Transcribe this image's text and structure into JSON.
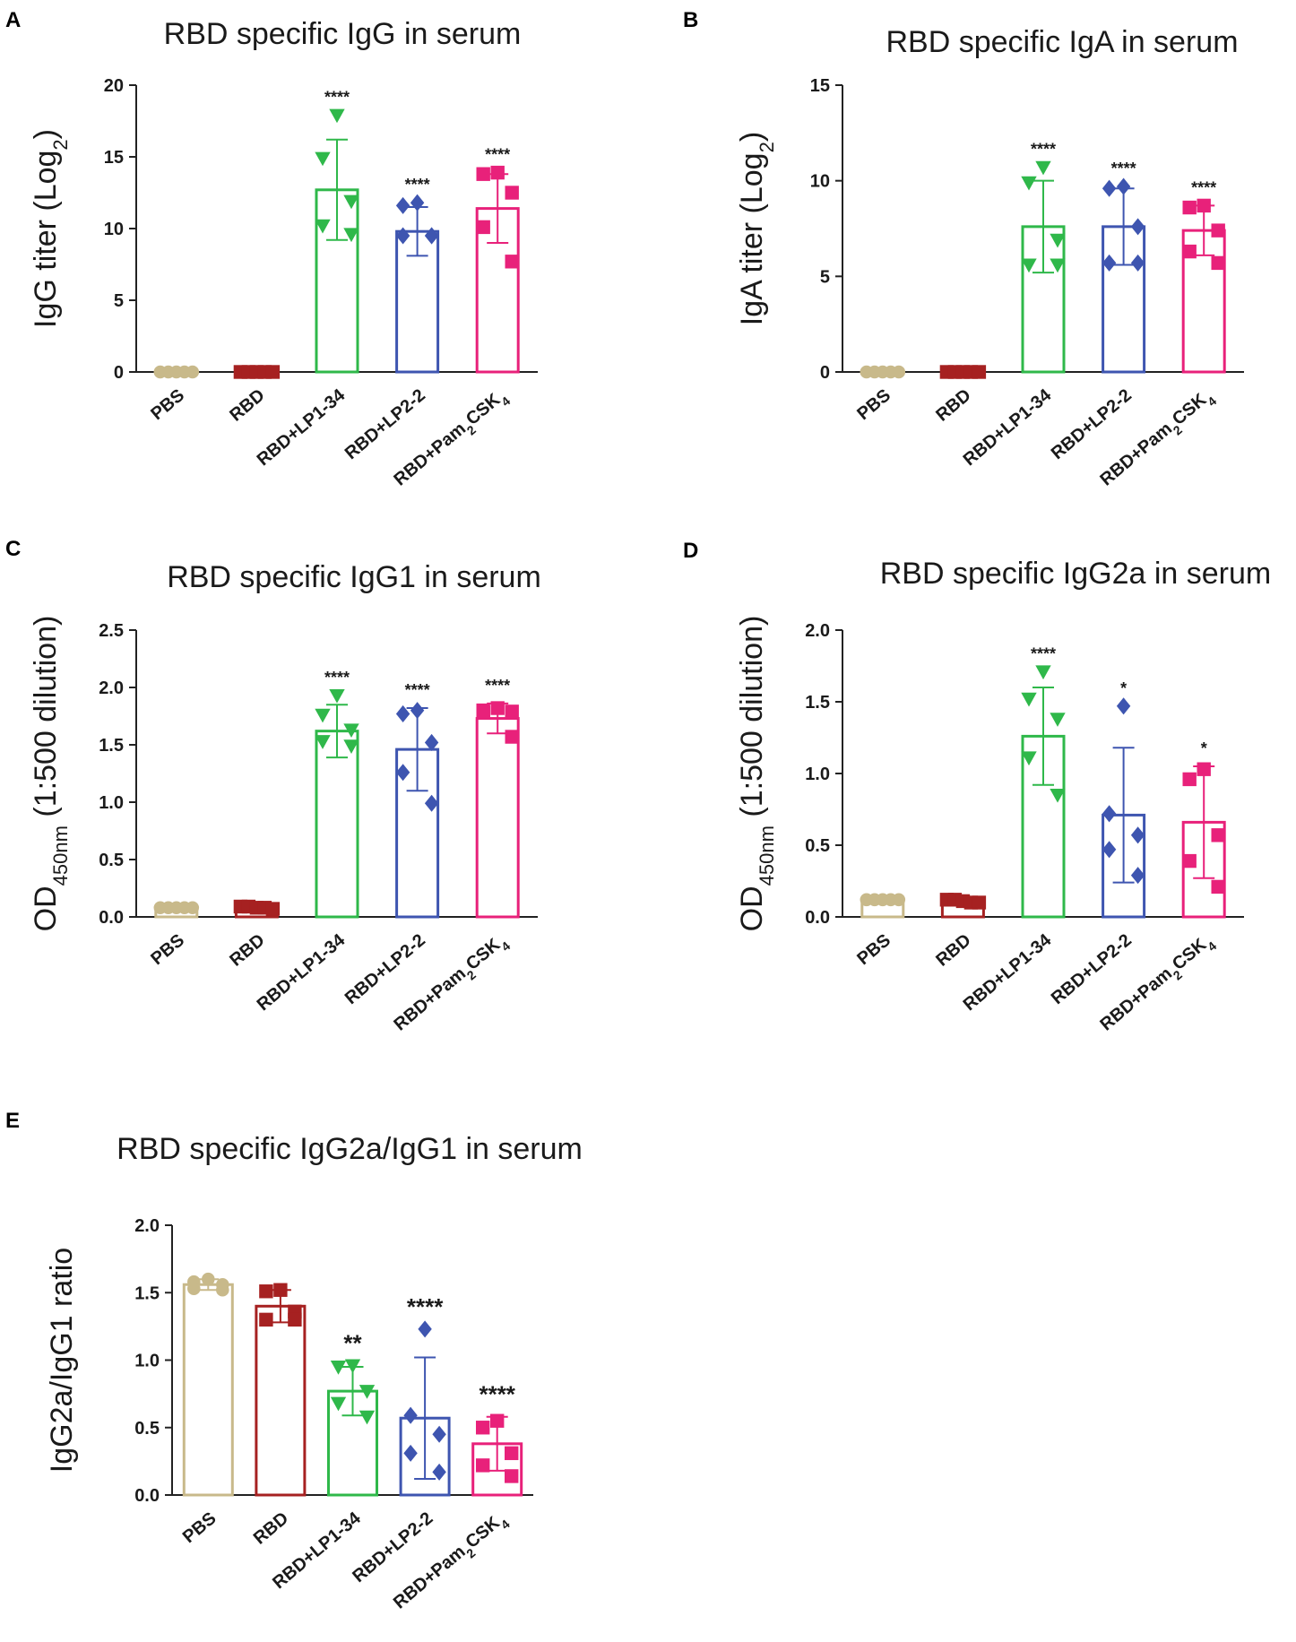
{
  "figure_colors": {
    "PBS": "#c8b98a",
    "RBD": "#a62121",
    "RBD+LP1-34": "#2fb84a",
    "RBD+LP2-2": "#3e55b0",
    "RBD+Pam2CSK4": "#e8217a"
  },
  "chart_data": [
    {
      "panel": "A",
      "type": "bar",
      "title": "RBD specific IgG in serum",
      "ylabel": {
        "main": "IgG titer (Log",
        "sub": "2",
        "tail": ")"
      },
      "ylim": [
        0,
        20
      ],
      "yticks": [
        0,
        5,
        10,
        15,
        20
      ],
      "categories": [
        {
          "main": "PBS"
        },
        {
          "main": "RBD"
        },
        {
          "main": "RBD+LP1-34"
        },
        {
          "main": "RBD+LP2-2"
        },
        {
          "main": "RBD+Pam",
          "sub": "2",
          "tail": "CSK",
          "sub2": "4"
        }
      ],
      "markers": [
        "circle",
        "square",
        "triangle",
        "diamond",
        "square"
      ],
      "means": [
        0,
        0,
        12.7,
        9.8,
        11.4
      ],
      "sd": [
        0,
        0,
        3.5,
        1.7,
        2.4
      ],
      "points": [
        [
          0,
          0,
          0,
          0,
          0
        ],
        [
          0,
          0,
          0,
          0,
          0
        ],
        [
          17.9,
          14.9,
          11.9,
          10.2,
          9.6
        ],
        [
          11.8,
          11.6,
          9.5,
          9.5,
          9.5
        ],
        [
          13.9,
          13.8,
          12.5,
          10.1,
          7.7
        ]
      ],
      "significance": [
        "",
        "",
        "****",
        "****",
        "****"
      ]
    },
    {
      "panel": "B",
      "type": "bar",
      "title": "RBD specific IgA in serum",
      "ylabel": {
        "main": "IgA titer (Log",
        "sub": "2",
        "tail": ")"
      },
      "ylim": [
        0,
        15
      ],
      "yticks": [
        0,
        5,
        10,
        15
      ],
      "categories": [
        {
          "main": "PBS"
        },
        {
          "main": "RBD"
        },
        {
          "main": "RBD+LP1-34"
        },
        {
          "main": "RBD+LP2-2"
        },
        {
          "main": "RBD+Pam",
          "sub": "2",
          "tail": "CSK",
          "sub2": "4"
        }
      ],
      "markers": [
        "circle",
        "square",
        "triangle",
        "diamond",
        "square"
      ],
      "means": [
        0,
        0,
        7.6,
        7.6,
        7.4
      ],
      "sd": [
        0,
        0,
        2.4,
        2.0,
        1.3
      ],
      "points": [
        [
          0,
          0,
          0,
          0,
          0
        ],
        [
          0,
          0,
          0,
          0,
          0
        ],
        [
          10.7,
          9.9,
          6.9,
          5.6,
          5.6
        ],
        [
          9.7,
          9.6,
          7.6,
          5.7,
          5.7
        ],
        [
          8.7,
          8.6,
          7.4,
          6.3,
          5.7
        ]
      ],
      "significance": [
        "",
        "",
        "****",
        "****",
        "****"
      ]
    },
    {
      "panel": "C",
      "type": "bar",
      "title": "RBD specific IgG1 in serum",
      "ylabel": {
        "main": "OD",
        "sub": "450nm",
        "tail": " (1:500 dilution)"
      },
      "ylim": [
        0,
        2.5
      ],
      "yticks": [
        0.0,
        0.5,
        1.0,
        1.5,
        2.0,
        2.5
      ],
      "categories": [
        {
          "main": "PBS"
        },
        {
          "main": "RBD"
        },
        {
          "main": "RBD+LP1-34"
        },
        {
          "main": "RBD+LP2-2"
        },
        {
          "main": "RBD+Pam",
          "sub": "2",
          "tail": "CSK",
          "sub2": "4"
        }
      ],
      "markers": [
        "circle",
        "square",
        "triangle",
        "diamond",
        "square"
      ],
      "means": [
        0.08,
        0.08,
        1.62,
        1.46,
        1.73
      ],
      "sd": [
        0,
        0,
        0.23,
        0.36,
        0.13
      ],
      "points": [
        [
          0.08,
          0.08,
          0.08,
          0.08,
          0.08
        ],
        [
          0.09,
          0.09,
          0.08,
          0.08,
          0.07
        ],
        [
          1.93,
          1.76,
          1.63,
          1.53,
          1.49
        ],
        [
          1.8,
          1.77,
          1.52,
          1.26,
          0.99
        ],
        [
          1.82,
          1.8,
          1.79,
          1.78,
          1.57
        ]
      ],
      "significance": [
        "",
        "",
        "****",
        "****",
        "****"
      ]
    },
    {
      "panel": "D",
      "type": "bar",
      "title": "RBD specific IgG2a in serum",
      "ylabel": {
        "main": "OD",
        "sub": "450nm",
        "tail": " (1:500 dilution)"
      },
      "ylim": [
        0,
        2.0
      ],
      "yticks": [
        0.0,
        0.5,
        1.0,
        1.5,
        2.0
      ],
      "categories": [
        {
          "main": "PBS"
        },
        {
          "main": "RBD"
        },
        {
          "main": "RBD+LP1-34"
        },
        {
          "main": "RBD+LP2-2"
        },
        {
          "main": "RBD+Pam",
          "sub": "2",
          "tail": "CSK",
          "sub2": "4"
        }
      ],
      "markers": [
        "circle",
        "square",
        "triangle",
        "diamond",
        "square"
      ],
      "means": [
        0.12,
        0.11,
        1.26,
        0.71,
        0.66
      ],
      "sd": [
        0,
        0,
        0.34,
        0.47,
        0.39
      ],
      "points": [
        [
          0.12,
          0.12,
          0.12,
          0.12,
          0.12
        ],
        [
          0.12,
          0.12,
          0.11,
          0.1,
          0.1
        ],
        [
          1.71,
          1.52,
          1.38,
          1.11,
          0.85
        ],
        [
          1.47,
          0.72,
          0.57,
          0.47,
          0.29
        ],
        [
          1.03,
          0.96,
          0.57,
          0.39,
          0.21
        ]
      ],
      "significance": [
        "",
        "",
        "****",
        "*",
        "*"
      ]
    },
    {
      "panel": "E",
      "type": "bar",
      "title": "RBD specific IgG2a/IgG1 in serum",
      "ylabel": {
        "main": "IgG2a/IgG1 ratio"
      },
      "ylim": [
        0,
        2.0
      ],
      "yticks": [
        0.0,
        0.5,
        1.0,
        1.5,
        2.0
      ],
      "categories": [
        {
          "main": "PBS"
        },
        {
          "main": "RBD"
        },
        {
          "main": "RBD+LP1-34"
        },
        {
          "main": "RBD+LP2-2"
        },
        {
          "main": "RBD+Pam",
          "sub": "2",
          "tail": "CSK",
          "sub2": "4"
        }
      ],
      "markers": [
        "circle",
        "square",
        "triangle",
        "diamond",
        "square"
      ],
      "means": [
        1.56,
        1.4,
        0.77,
        0.57,
        0.38
      ],
      "sd": [
        0.04,
        0.12,
        0.18,
        0.45,
        0.2
      ],
      "points": [
        [
          1.6,
          1.58,
          1.56,
          1.53,
          1.52
        ],
        [
          1.52,
          1.51,
          1.36,
          1.3,
          1.3
        ],
        [
          0.96,
          0.95,
          0.77,
          0.68,
          0.58
        ],
        [
          1.23,
          0.59,
          0.45,
          0.31,
          0.17
        ],
        [
          0.55,
          0.5,
          0.31,
          0.22,
          0.14
        ]
      ],
      "significance": [
        "",
        "",
        "**",
        "****",
        "****"
      ]
    }
  ]
}
